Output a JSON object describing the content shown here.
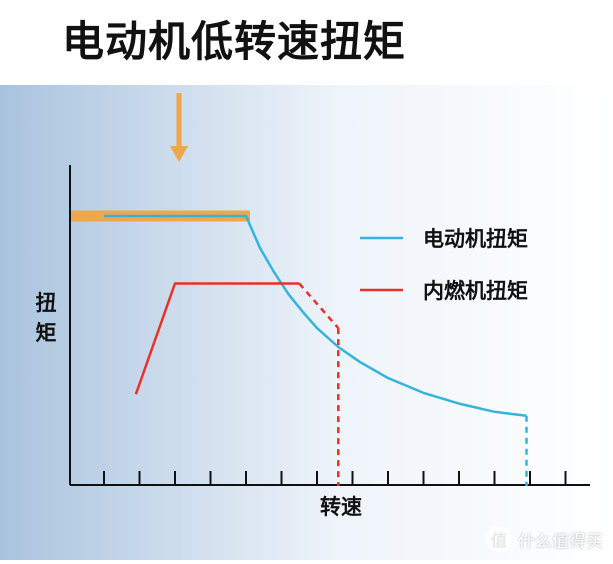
{
  "title": "电动机低转速扭矩",
  "watermark": {
    "text": "什么值得买",
    "logo_char": "值"
  },
  "colors": {
    "background_left": "#a9c3de",
    "background_right": "#ffffff",
    "electric": "#35b3dc",
    "combustion": "#e8312a",
    "highlight": "#f0a64a",
    "axis": "#111111"
  },
  "chart_data": {
    "type": "line",
    "title": "电动机低转速扭矩",
    "xlabel": "转速",
    "ylabel": "扭矩",
    "x_ticks_count": 14,
    "grid": false,
    "legend_placement": "right",
    "series": [
      {
        "name": "电动机扭矩",
        "color": "#35b3dc",
        "segments": [
          {
            "style": "solid",
            "points": [
              [
                0,
                100
              ],
              [
                4,
                100
              ],
              [
                4.4,
                88
              ],
              [
                4.8,
                79
              ],
              [
                5.2,
                71
              ],
              [
                5.6,
                64.5
              ],
              [
                6,
                58.5
              ],
              [
                6.6,
                51.5
              ],
              [
                7.2,
                46
              ],
              [
                8,
                40
              ],
              [
                9,
                34.5
              ],
              [
                10,
                30.5
              ],
              [
                11,
                27.5
              ],
              [
                11.9,
                26
              ]
            ]
          },
          {
            "style": "dashed",
            "points": [
              [
                11.9,
                26
              ],
              [
                11.9,
                0
              ]
            ]
          }
        ]
      },
      {
        "name": "内燃机扭矩",
        "color": "#e8312a",
        "segments": [
          {
            "style": "solid",
            "points": [
              [
                0.9,
                34
              ],
              [
                2,
                75
              ],
              [
                5.5,
                75
              ]
            ]
          },
          {
            "style": "dashed",
            "points": [
              [
                5.5,
                75
              ],
              [
                6,
                67.5
              ],
              [
                6.6,
                58.5
              ]
            ]
          },
          {
            "style": "dashed",
            "points": [
              [
                6.6,
                58.5
              ],
              [
                6.6,
                0
              ]
            ]
          }
        ]
      }
    ],
    "highlight_bar": {
      "x": [
        0,
        4
      ],
      "y": 100
    },
    "arrow_marker": {
      "x": 2
    }
  }
}
